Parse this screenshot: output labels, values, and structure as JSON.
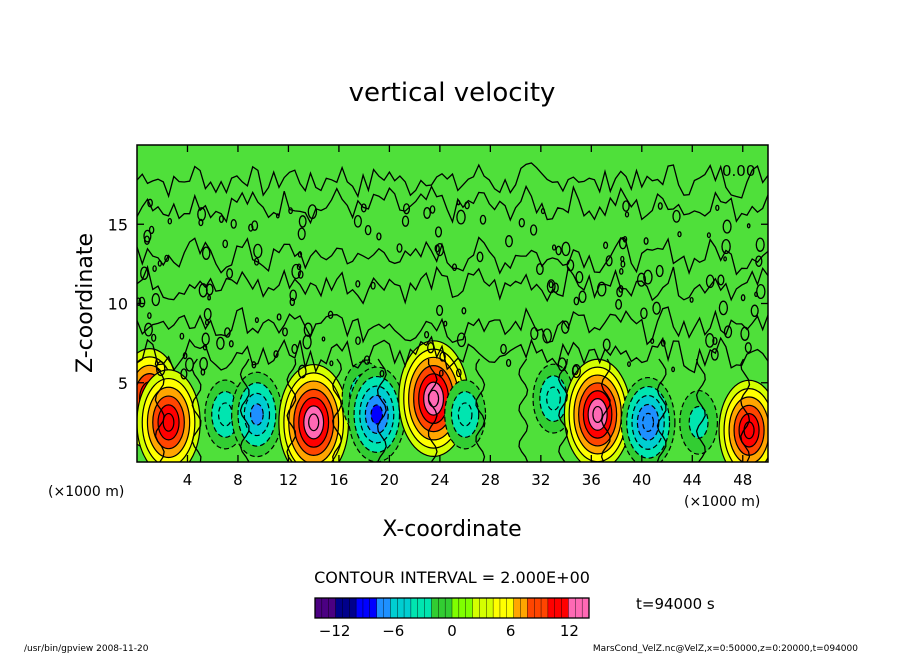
{
  "chart_data": {
    "type": "heatmap",
    "title": "vertical velocity",
    "xlabel": "X-coordinate",
    "ylabel": "Z-coordinate",
    "x_unit_left": "(×1000 m)",
    "x_unit_right": "(×1000 m)",
    "xlim": [
      0,
      50
    ],
    "ylim": [
      0,
      20
    ],
    "x_ticks": [
      4,
      8,
      12,
      16,
      20,
      24,
      28,
      32,
      36,
      40,
      44,
      48
    ],
    "y_ticks": [
      5,
      10,
      15
    ],
    "contour_interval_text": "CONTOUR INTERVAL = 2.000E+00",
    "contour_label": "0.00",
    "time_label": "t=94000 s",
    "colorbar": {
      "min": -14,
      "max": 14,
      "ticks": [
        -12,
        -6,
        0,
        6,
        12
      ],
      "colors": [
        "#4b0082",
        "#00008b",
        "#0000ff",
        "#1e90ff",
        "#00ced1",
        "#00e5b0",
        "#32cd32",
        "#7fff00",
        "#d4ff00",
        "#ffff00",
        "#ffa500",
        "#ff4500",
        "#ff0000",
        "#ff69b4"
      ]
    },
    "cells": [
      {
        "x": 1,
        "z": 4,
        "w": 10
      },
      {
        "x": 2.5,
        "z": 2.5,
        "w": 11
      },
      {
        "x": 7,
        "z": 3,
        "w": -4
      },
      {
        "x": 9.5,
        "z": 3,
        "w": -7
      },
      {
        "x": 14,
        "z": 2.5,
        "w": 13
      },
      {
        "x": 18,
        "z": 4,
        "w": -5
      },
      {
        "x": 19,
        "z": 3,
        "w": -9
      },
      {
        "x": 23.5,
        "z": 4,
        "w": 13
      },
      {
        "x": 26,
        "z": 3,
        "w": -4
      },
      {
        "x": 33,
        "z": 4,
        "w": -4
      },
      {
        "x": 36.5,
        "z": 3,
        "w": 12
      },
      {
        "x": 40.5,
        "z": 2.5,
        "w": -8
      },
      {
        "x": 44.5,
        "z": 2.5,
        "w": -3
      },
      {
        "x": 48.5,
        "z": 2,
        "w": 10
      }
    ]
  },
  "footer": {
    "left": "/usr/bin/gpview  2008-11-20",
    "right": "MarsCond_VelZ.nc@VelZ,x=0:50000,z=0:20000,t=094000"
  }
}
